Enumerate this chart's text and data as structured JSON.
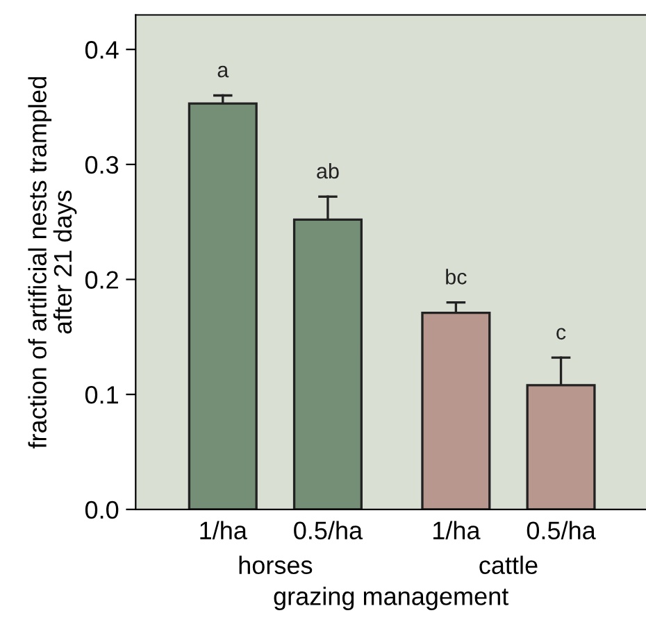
{
  "chart_data": {
    "type": "bar",
    "xlabel": "grazing management",
    "ylabel": "fraction of artificial nests trampled\nafter 21 days",
    "categories": [
      "1/ha",
      "0.5/ha",
      "1/ha",
      "0.5/ha"
    ],
    "values": [
      0.353,
      0.252,
      0.171,
      0.108
    ],
    "colors": [
      "#748f75",
      "#748f75",
      "#b7978e",
      "#b7978e"
    ],
    "errors": [
      [
        0.353,
        0.36
      ],
      [
        0.252,
        0.272
      ],
      [
        0.171,
        0.18
      ],
      [
        0.108,
        0.132
      ]
    ],
    "value_labels": [
      "a",
      "ab",
      "bc",
      "c"
    ],
    "annotations": [
      "horses",
      "cattle"
    ],
    "ylim": [
      0,
      0.43
    ],
    "yticks": [
      {
        "value": 0,
        "label": "0.0"
      },
      0.1,
      0.2,
      0.3,
      0.4
    ],
    "grid": false,
    "legend": false
  }
}
